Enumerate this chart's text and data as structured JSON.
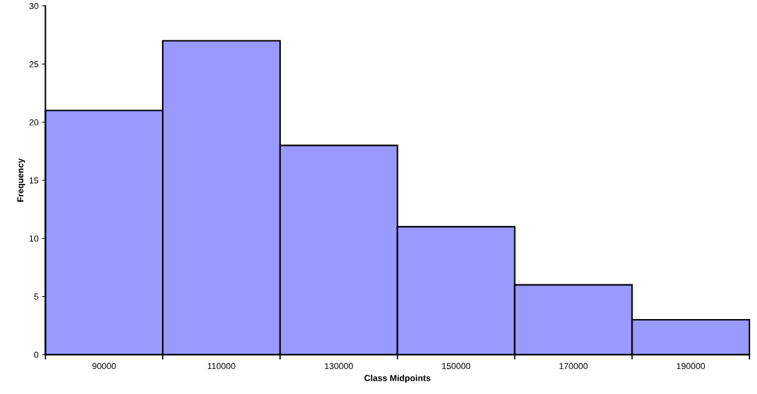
{
  "chart_data": {
    "type": "histogram",
    "xlabel": "Class Midpoints",
    "ylabel": "Frequency",
    "bins": [
      80000,
      100000,
      120000,
      140000,
      160000,
      180000,
      200000
    ],
    "values": [
      21,
      27,
      18,
      11,
      6,
      3
    ],
    "color": "#9999ff",
    "xlim": [
      80000,
      200000
    ],
    "xticks": [
      {
        "value": 80000,
        "label": null
      },
      {
        "value": 90000,
        "label": "90000"
      },
      {
        "value": 100000,
        "label": null
      },
      {
        "value": 110000,
        "label": "110000"
      },
      {
        "value": 120000,
        "label": null
      },
      {
        "value": 130000,
        "label": "130000"
      },
      {
        "value": 140000,
        "label": null
      },
      {
        "value": 150000,
        "label": "150000"
      },
      {
        "value": 160000,
        "label": null
      },
      {
        "value": 170000,
        "label": "170000"
      },
      {
        "value": 180000,
        "label": null
      },
      {
        "value": 190000,
        "label": "190000"
      },
      {
        "value": 200000,
        "label": null
      }
    ],
    "ylim": [
      0,
      30
    ],
    "yticks": [
      0,
      5,
      10,
      15,
      20,
      25,
      30
    ],
    "grid": false
  }
}
